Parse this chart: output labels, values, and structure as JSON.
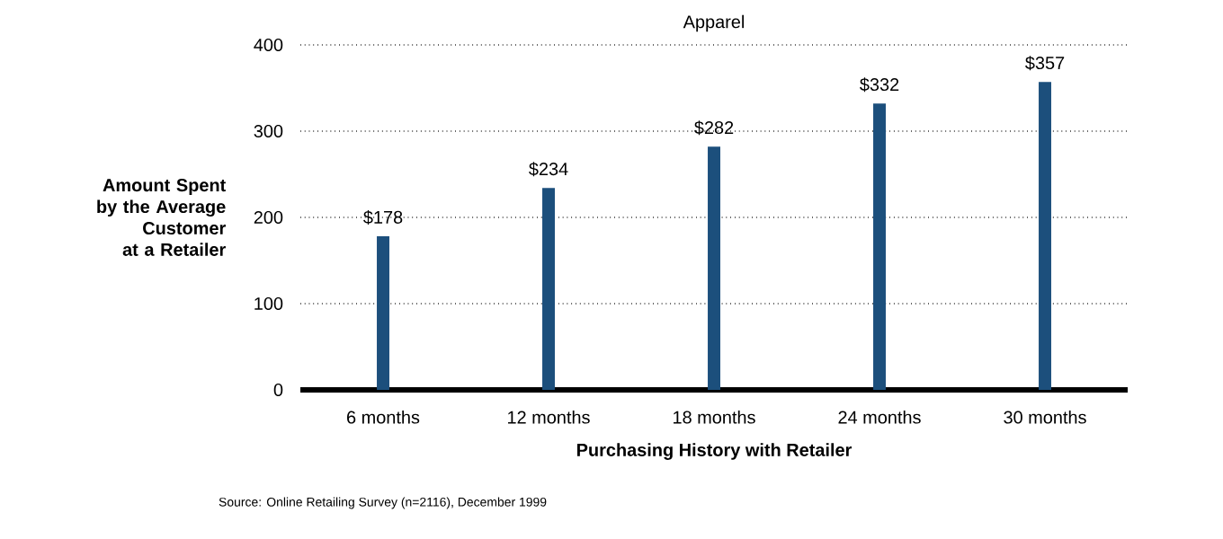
{
  "chart_data": {
    "type": "bar",
    "title": "Apparel",
    "xlabel": "Purchasing History with Retailer",
    "ylabel": "Amount Spent by the Average Customer at a Retailer",
    "categories": [
      "6 months",
      "12 months",
      "18 months",
      "24 months",
      "30 months"
    ],
    "values": [
      178,
      234,
      282,
      332,
      357
    ],
    "value_labels": [
      "$178",
      "$234",
      "$282",
      "$332",
      "$357"
    ],
    "color": "#1c4f7c",
    "ylim": [
      0,
      400
    ],
    "yticks": [
      0,
      100,
      200,
      300,
      400
    ],
    "grid": "y",
    "annotations": [
      "Source: Online Retailing Survey (n=2116), December 1999"
    ]
  }
}
